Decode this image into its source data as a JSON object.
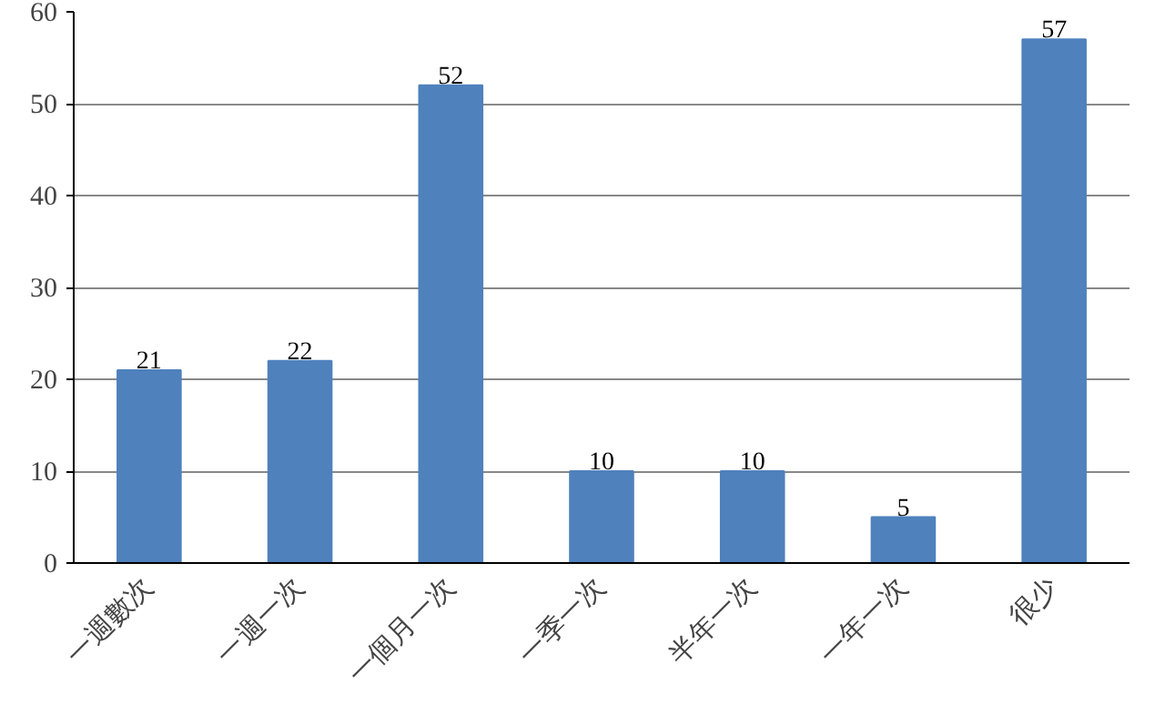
{
  "chart_data": {
    "type": "bar",
    "categories": [
      "一週數次",
      "一週一次",
      "一個月一次",
      "一季一次",
      "半年一次",
      "一年一次",
      "很少"
    ],
    "values": [
      21,
      22,
      52,
      10,
      10,
      5,
      57
    ],
    "color": "#4f81bd",
    "ylim": [
      0,
      60
    ],
    "yticks": [
      0,
      10,
      20,
      30,
      40,
      50,
      60
    ],
    "grid": "y",
    "data_labels": true
  }
}
